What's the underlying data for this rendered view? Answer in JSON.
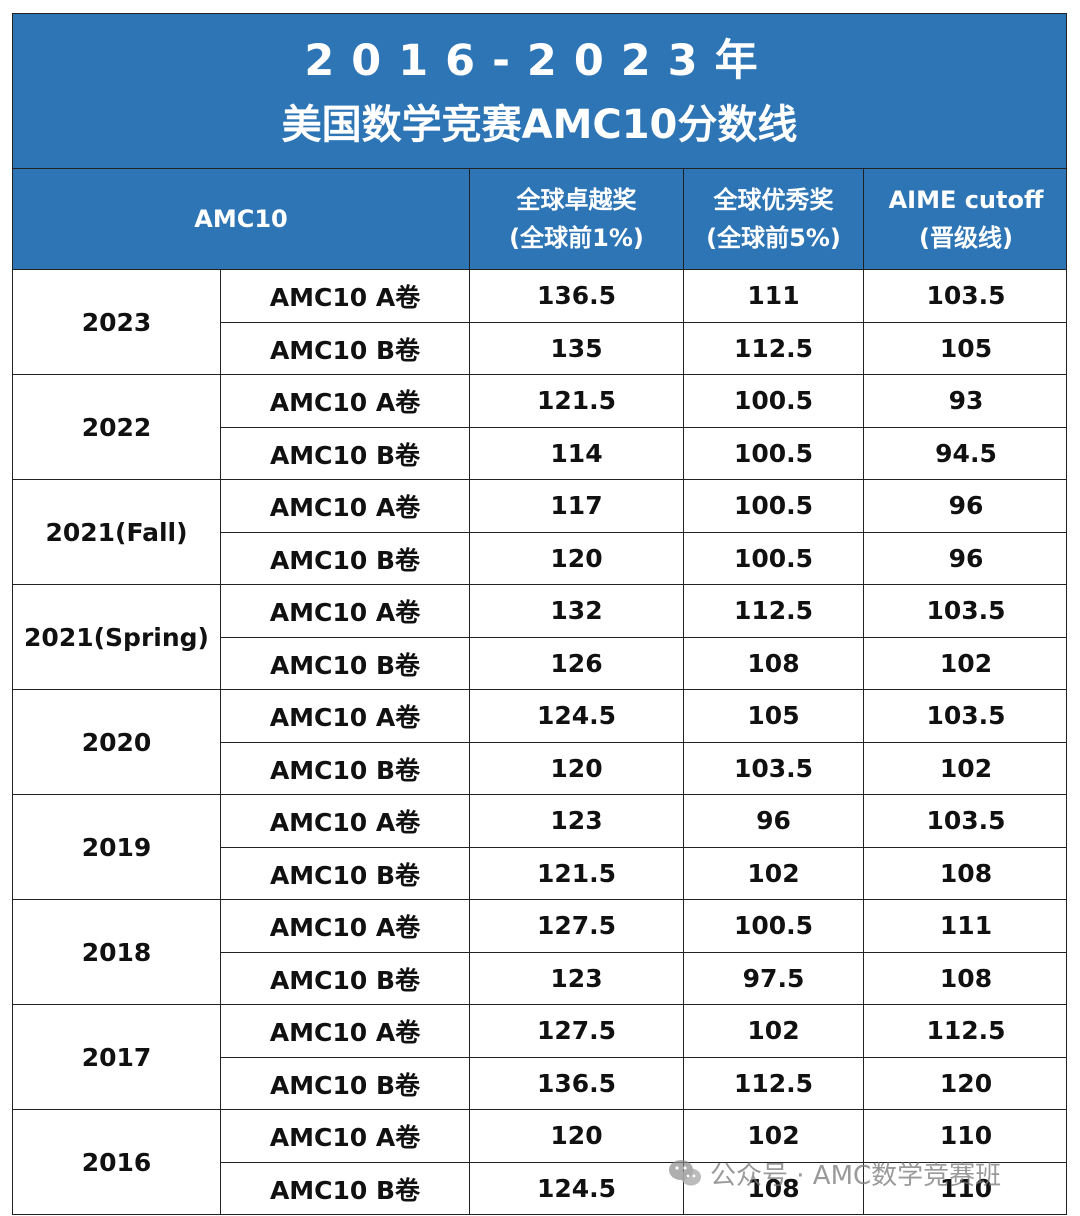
{
  "title": {
    "line1": "2016-2023年",
    "line2": "美国数学竞赛AMC10分数线"
  },
  "header": {
    "amc10": "AMC10",
    "col1_line1": "全球卓越奖",
    "col1_line2": "(全球前1%)",
    "col2_line1": "全球优秀奖",
    "col2_line2": "(全球前5%)",
    "col3_line1": "AIME cutoff",
    "col3_line2": "(晋级线)"
  },
  "rows": [
    {
      "year": "2023",
      "a": {
        "paper": "AMC10 A卷",
        "v1": "136.5",
        "v2": "111",
        "v3": "103.5"
      },
      "b": {
        "paper": "AMC10 B卷",
        "v1": "135",
        "v2": "112.5",
        "v3": "105"
      }
    },
    {
      "year": "2022",
      "a": {
        "paper": "AMC10 A卷",
        "v1": "121.5",
        "v2": "100.5",
        "v3": "93"
      },
      "b": {
        "paper": "AMC10 B卷",
        "v1": "114",
        "v2": "100.5",
        "v3": "94.5"
      }
    },
    {
      "year": "2021(Fall)",
      "a": {
        "paper": "AMC10 A卷",
        "v1": "117",
        "v2": "100.5",
        "v3": "96"
      },
      "b": {
        "paper": "AMC10 B卷",
        "v1": "120",
        "v2": "100.5",
        "v3": "96"
      }
    },
    {
      "year": "2021(Spring)",
      "a": {
        "paper": "AMC10 A卷",
        "v1": "132",
        "v2": "112.5",
        "v3": "103.5"
      },
      "b": {
        "paper": "AMC10 B卷",
        "v1": "126",
        "v2": "108",
        "v3": "102"
      }
    },
    {
      "year": "2020",
      "a": {
        "paper": "AMC10 A卷",
        "v1": "124.5",
        "v2": "105",
        "v3": "103.5"
      },
      "b": {
        "paper": "AMC10 B卷",
        "v1": "120",
        "v2": "103.5",
        "v3": "102"
      }
    },
    {
      "year": "2019",
      "a": {
        "paper": "AMC10 A卷",
        "v1": "123",
        "v2": "96",
        "v3": "103.5"
      },
      "b": {
        "paper": "AMC10 B卷",
        "v1": "121.5",
        "v2": "102",
        "v3": "108"
      }
    },
    {
      "year": "2018",
      "a": {
        "paper": "AMC10 A卷",
        "v1": "127.5",
        "v2": "100.5",
        "v3": "111"
      },
      "b": {
        "paper": "AMC10 B卷",
        "v1": "123",
        "v2": "97.5",
        "v3": "108"
      }
    },
    {
      "year": "2017",
      "a": {
        "paper": "AMC10 A卷",
        "v1": "127.5",
        "v2": "102",
        "v3": "112.5"
      },
      "b": {
        "paper": "AMC10 B卷",
        "v1": "136.5",
        "v2": "112.5",
        "v3": "120"
      }
    },
    {
      "year": "2016",
      "a": {
        "paper": "AMC10 A卷",
        "v1": "120",
        "v2": "102",
        "v3": "110"
      },
      "b": {
        "paper": "AMC10 B卷",
        "v1": "124.5",
        "v2": "108",
        "v3": "110"
      }
    }
  ],
  "watermark": {
    "icon": "wechat-icon",
    "text": "公众号 · AMC数学竞赛班"
  },
  "colors": {
    "header_blue": "#2e75b6",
    "header_text": "#ffffff",
    "border": "#222222"
  }
}
